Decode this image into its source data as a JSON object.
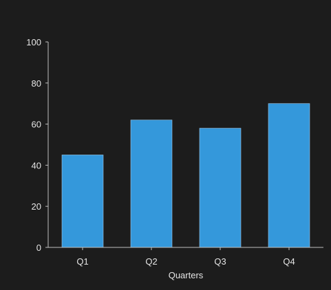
{
  "chart_data": {
    "type": "bar",
    "categories": [
      "Q1",
      "Q2",
      "Q3",
      "Q4"
    ],
    "values": [
      45,
      62,
      58,
      70
    ],
    "title": "",
    "xlabel": "Quarters",
    "ylabel": "",
    "ylim": [
      0,
      100
    ],
    "yticks": [
      0,
      20,
      40,
      60,
      80,
      100
    ],
    "grid": false,
    "legend": "none",
    "colors": {
      "bar": "#3498db",
      "background": "#1c1c1c",
      "axis": "#bfbfbf",
      "text": "#e6e6e6"
    }
  }
}
